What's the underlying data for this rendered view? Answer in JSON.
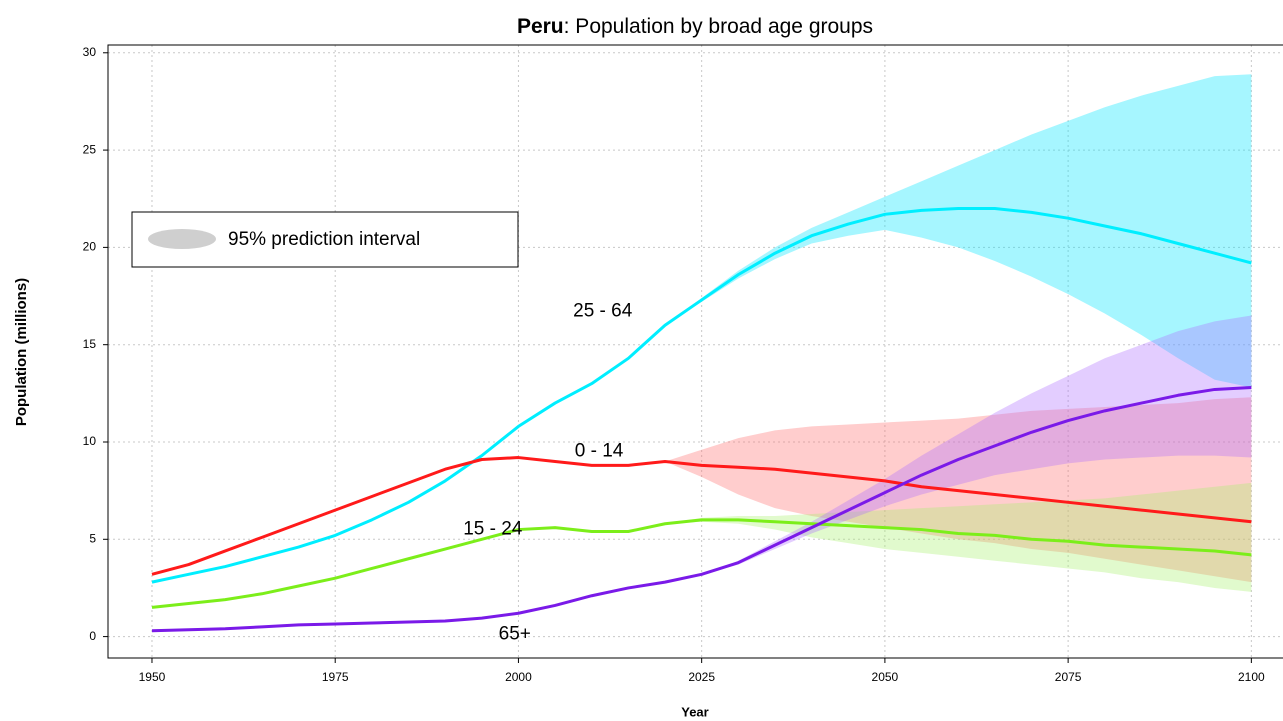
{
  "chart_data": {
    "type": "line",
    "title_country": "Peru",
    "title": ": Population by broad age groups",
    "x_label": "Year",
    "y_label": "Population (millions)",
    "band_legend": "95% prediction interval",
    "x": [
      1950,
      1955,
      1960,
      1965,
      1970,
      1975,
      1980,
      1985,
      1990,
      1995,
      2000,
      2005,
      2010,
      2015,
      2020,
      2025,
      2030,
      2035,
      2040,
      2045,
      2050,
      2055,
      2060,
      2065,
      2070,
      2075,
      2080,
      2085,
      2090,
      2095,
      2100
    ],
    "xlim": [
      1944,
      2105
    ],
    "ylim": [
      -1.1,
      30.4
    ],
    "xticks": [
      1950,
      1975,
      2000,
      2025,
      2050,
      2075,
      2100
    ],
    "yticks": [
      0,
      5,
      10,
      15,
      20,
      25,
      30
    ],
    "grid": true,
    "series": [
      {
        "name": "25 - 64",
        "color": "#00eeff",
        "band_color": "#00e5ff",
        "values": [
          2.8,
          3.2,
          3.6,
          4.1,
          4.6,
          5.2,
          6.0,
          6.9,
          8.0,
          9.3,
          10.8,
          12.0,
          13.0,
          14.3,
          16.0,
          17.3,
          18.6,
          19.7,
          20.6,
          21.2,
          21.7,
          21.9,
          22.0,
          22.0,
          21.8,
          21.5,
          21.1,
          20.7,
          20.2,
          19.7,
          19.2
        ],
        "lower": [
          null,
          null,
          null,
          null,
          null,
          null,
          null,
          null,
          null,
          null,
          null,
          null,
          null,
          null,
          16.0,
          17.2,
          18.4,
          19.4,
          20.2,
          20.6,
          20.9,
          20.5,
          20.0,
          19.3,
          18.5,
          17.6,
          16.6,
          15.5,
          14.3,
          13.2,
          12.8
        ],
        "upper": [
          null,
          null,
          null,
          null,
          null,
          null,
          null,
          null,
          null,
          null,
          null,
          null,
          null,
          null,
          16.0,
          17.4,
          18.8,
          20.0,
          21.0,
          21.8,
          22.6,
          23.4,
          24.2,
          25.0,
          25.8,
          26.5,
          27.2,
          27.8,
          28.3,
          28.8,
          28.9
        ]
      },
      {
        "name": "0 - 14",
        "color": "#ff1a1a",
        "band_color": "#ff7070",
        "values": [
          3.2,
          3.7,
          4.4,
          5.1,
          5.8,
          6.5,
          7.2,
          7.9,
          8.6,
          9.1,
          9.2,
          9.0,
          8.8,
          8.8,
          9.0,
          8.8,
          8.7,
          8.6,
          8.4,
          8.2,
          8.0,
          7.7,
          7.5,
          7.3,
          7.1,
          6.9,
          6.7,
          6.5,
          6.3,
          6.1,
          5.9
        ],
        "lower": [
          null,
          null,
          null,
          null,
          null,
          null,
          null,
          null,
          null,
          null,
          null,
          null,
          null,
          null,
          9.0,
          8.2,
          7.3,
          6.6,
          6.2,
          5.9,
          5.6,
          5.3,
          5.0,
          4.8,
          4.5,
          4.3,
          4.0,
          3.7,
          3.4,
          3.1,
          2.8
        ],
        "upper": [
          null,
          null,
          null,
          null,
          null,
          null,
          null,
          null,
          null,
          null,
          null,
          null,
          null,
          null,
          9.0,
          9.6,
          10.2,
          10.6,
          10.8,
          10.9,
          11.0,
          11.1,
          11.2,
          11.4,
          11.6,
          11.7,
          11.8,
          11.9,
          12.0,
          12.2,
          12.3
        ]
      },
      {
        "name": "15 - 24",
        "color": "#7cee1a",
        "band_color": "#a8f070",
        "values": [
          1.5,
          1.7,
          1.9,
          2.2,
          2.6,
          3.0,
          3.5,
          4.0,
          4.5,
          5.0,
          5.5,
          5.6,
          5.4,
          5.4,
          5.8,
          6.0,
          6.0,
          5.9,
          5.8,
          5.7,
          5.6,
          5.5,
          5.3,
          5.2,
          5.0,
          4.9,
          4.7,
          4.6,
          4.5,
          4.4,
          4.2
        ],
        "lower": [
          null,
          null,
          null,
          null,
          null,
          null,
          null,
          null,
          null,
          null,
          null,
          null,
          null,
          null,
          5.8,
          5.9,
          5.8,
          5.5,
          5.1,
          4.8,
          4.5,
          4.3,
          4.1,
          3.9,
          3.7,
          3.5,
          3.3,
          3.0,
          2.8,
          2.5,
          2.3
        ],
        "upper": [
          null,
          null,
          null,
          null,
          null,
          null,
          null,
          null,
          null,
          null,
          null,
          null,
          null,
          null,
          5.8,
          6.1,
          6.2,
          6.2,
          6.3,
          6.4,
          6.5,
          6.6,
          6.7,
          6.8,
          6.9,
          7.0,
          7.1,
          7.3,
          7.5,
          7.7,
          7.9
        ]
      },
      {
        "name": "65+",
        "color": "#7a1ae8",
        "band_color": "#b070ff",
        "values": [
          0.3,
          0.35,
          0.4,
          0.5,
          0.6,
          0.65,
          0.7,
          0.75,
          0.8,
          0.95,
          1.2,
          1.6,
          2.1,
          2.5,
          2.8,
          3.2,
          3.8,
          4.7,
          5.6,
          6.5,
          7.4,
          8.3,
          9.1,
          9.8,
          10.5,
          11.1,
          11.6,
          12.0,
          12.4,
          12.7,
          12.8
        ],
        "lower": [
          null,
          null,
          null,
          null,
          null,
          null,
          null,
          null,
          null,
          null,
          null,
          null,
          null,
          null,
          2.8,
          3.2,
          3.7,
          4.5,
          5.3,
          6.0,
          6.7,
          7.3,
          7.8,
          8.3,
          8.6,
          8.9,
          9.1,
          9.2,
          9.3,
          9.3,
          9.2
        ],
        "upper": [
          null,
          null,
          null,
          null,
          null,
          null,
          null,
          null,
          null,
          null,
          null,
          null,
          null,
          null,
          2.8,
          3.2,
          3.9,
          4.9,
          5.9,
          7.0,
          8.1,
          9.3,
          10.4,
          11.5,
          12.5,
          13.4,
          14.3,
          15.0,
          15.7,
          16.2,
          16.5
        ]
      }
    ]
  }
}
